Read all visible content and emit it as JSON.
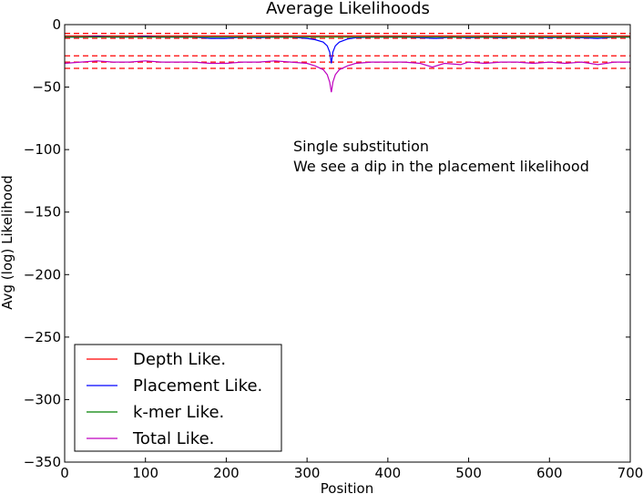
{
  "chart_data": {
    "type": "line",
    "title": "Average Likelihoods",
    "xlabel": "Position",
    "ylabel": "Avg (log) Likelihood",
    "xlim": [
      0,
      700
    ],
    "ylim": [
      -350,
      0
    ],
    "xticks": [
      0,
      100,
      200,
      300,
      400,
      500,
      600,
      700
    ],
    "yticks": [
      0,
      -50,
      -100,
      -150,
      -200,
      -250,
      -300,
      -350
    ],
    "ytick_labels": [
      "0",
      "−50",
      "−100",
      "−150",
      "−200",
      "−250",
      "−300",
      "−350"
    ],
    "grid": false,
    "legend_position": "lower-left",
    "annotation": [
      "Single substitution",
      "We see a dip in the placement likelihood"
    ],
    "annotation_position": [
      282,
      -97
    ],
    "reference_lines": {
      "color": "#ff0000",
      "style": "dashed",
      "y": [
        -7,
        -11,
        -25,
        -30,
        -35
      ]
    },
    "series": [
      {
        "name": "Depth Like.",
        "color": "#ff0000",
        "x": [
          0,
          50,
          100,
          150,
          200,
          250,
          300,
          330,
          360,
          400,
          450,
          500,
          550,
          600,
          650,
          700
        ],
        "y": [
          -9,
          -9,
          -9,
          -9,
          -9,
          -9,
          -9,
          -9,
          -9,
          -9,
          -9,
          -9,
          -9,
          -9,
          -9,
          -9
        ]
      },
      {
        "name": "Placement Like.",
        "color": "#0000ff",
        "x": [
          0,
          20,
          40,
          60,
          80,
          100,
          120,
          140,
          160,
          180,
          200,
          220,
          240,
          260,
          280,
          300,
          310,
          320,
          325,
          328,
          330,
          332,
          335,
          340,
          350,
          360,
          380,
          400,
          420,
          440,
          460,
          480,
          500,
          520,
          540,
          560,
          580,
          600,
          620,
          640,
          660,
          680,
          700
        ],
        "y": [
          -10,
          -10,
          -9.5,
          -10,
          -10,
          -9.5,
          -10,
          -10,
          -10,
          -11,
          -11,
          -10,
          -10.5,
          -10,
          -10,
          -11,
          -12,
          -14,
          -17,
          -22,
          -31,
          -22,
          -17,
          -14,
          -11.5,
          -10.5,
          -10,
          -10,
          -10,
          -10.5,
          -11,
          -10,
          -10.5,
          -10,
          -10.5,
          -10,
          -10,
          -10.5,
          -10,
          -10.5,
          -11,
          -10,
          -10
        ]
      },
      {
        "name": "k-mer Like.",
        "color": "#008000",
        "x": [
          0,
          100,
          200,
          300,
          330,
          400,
          500,
          600,
          700
        ],
        "y": [
          -10,
          -10,
          -10,
          -10,
          -10,
          -10,
          -10,
          -10,
          -10
        ]
      },
      {
        "name": "Total Like.",
        "color": "#bf00bf",
        "x": [
          0,
          20,
          40,
          60,
          80,
          100,
          120,
          140,
          160,
          180,
          200,
          220,
          240,
          260,
          280,
          300,
          310,
          320,
          325,
          328,
          330,
          332,
          335,
          340,
          350,
          360,
          380,
          400,
          420,
          440,
          455,
          470,
          490,
          500,
          520,
          540,
          560,
          580,
          600,
          620,
          640,
          660,
          680,
          700
        ],
        "y": [
          -31,
          -30,
          -29,
          -30,
          -30,
          -29,
          -30,
          -30,
          -30,
          -31,
          -31,
          -30,
          -30,
          -29,
          -30,
          -31,
          -33,
          -36,
          -40,
          -46,
          -54,
          -46,
          -40,
          -36,
          -33,
          -31,
          -30,
          -30,
          -30,
          -31,
          -34,
          -31,
          -32,
          -30,
          -31,
          -30,
          -30,
          -31,
          -30,
          -31,
          -30,
          -32,
          -30,
          -30
        ]
      }
    ]
  }
}
